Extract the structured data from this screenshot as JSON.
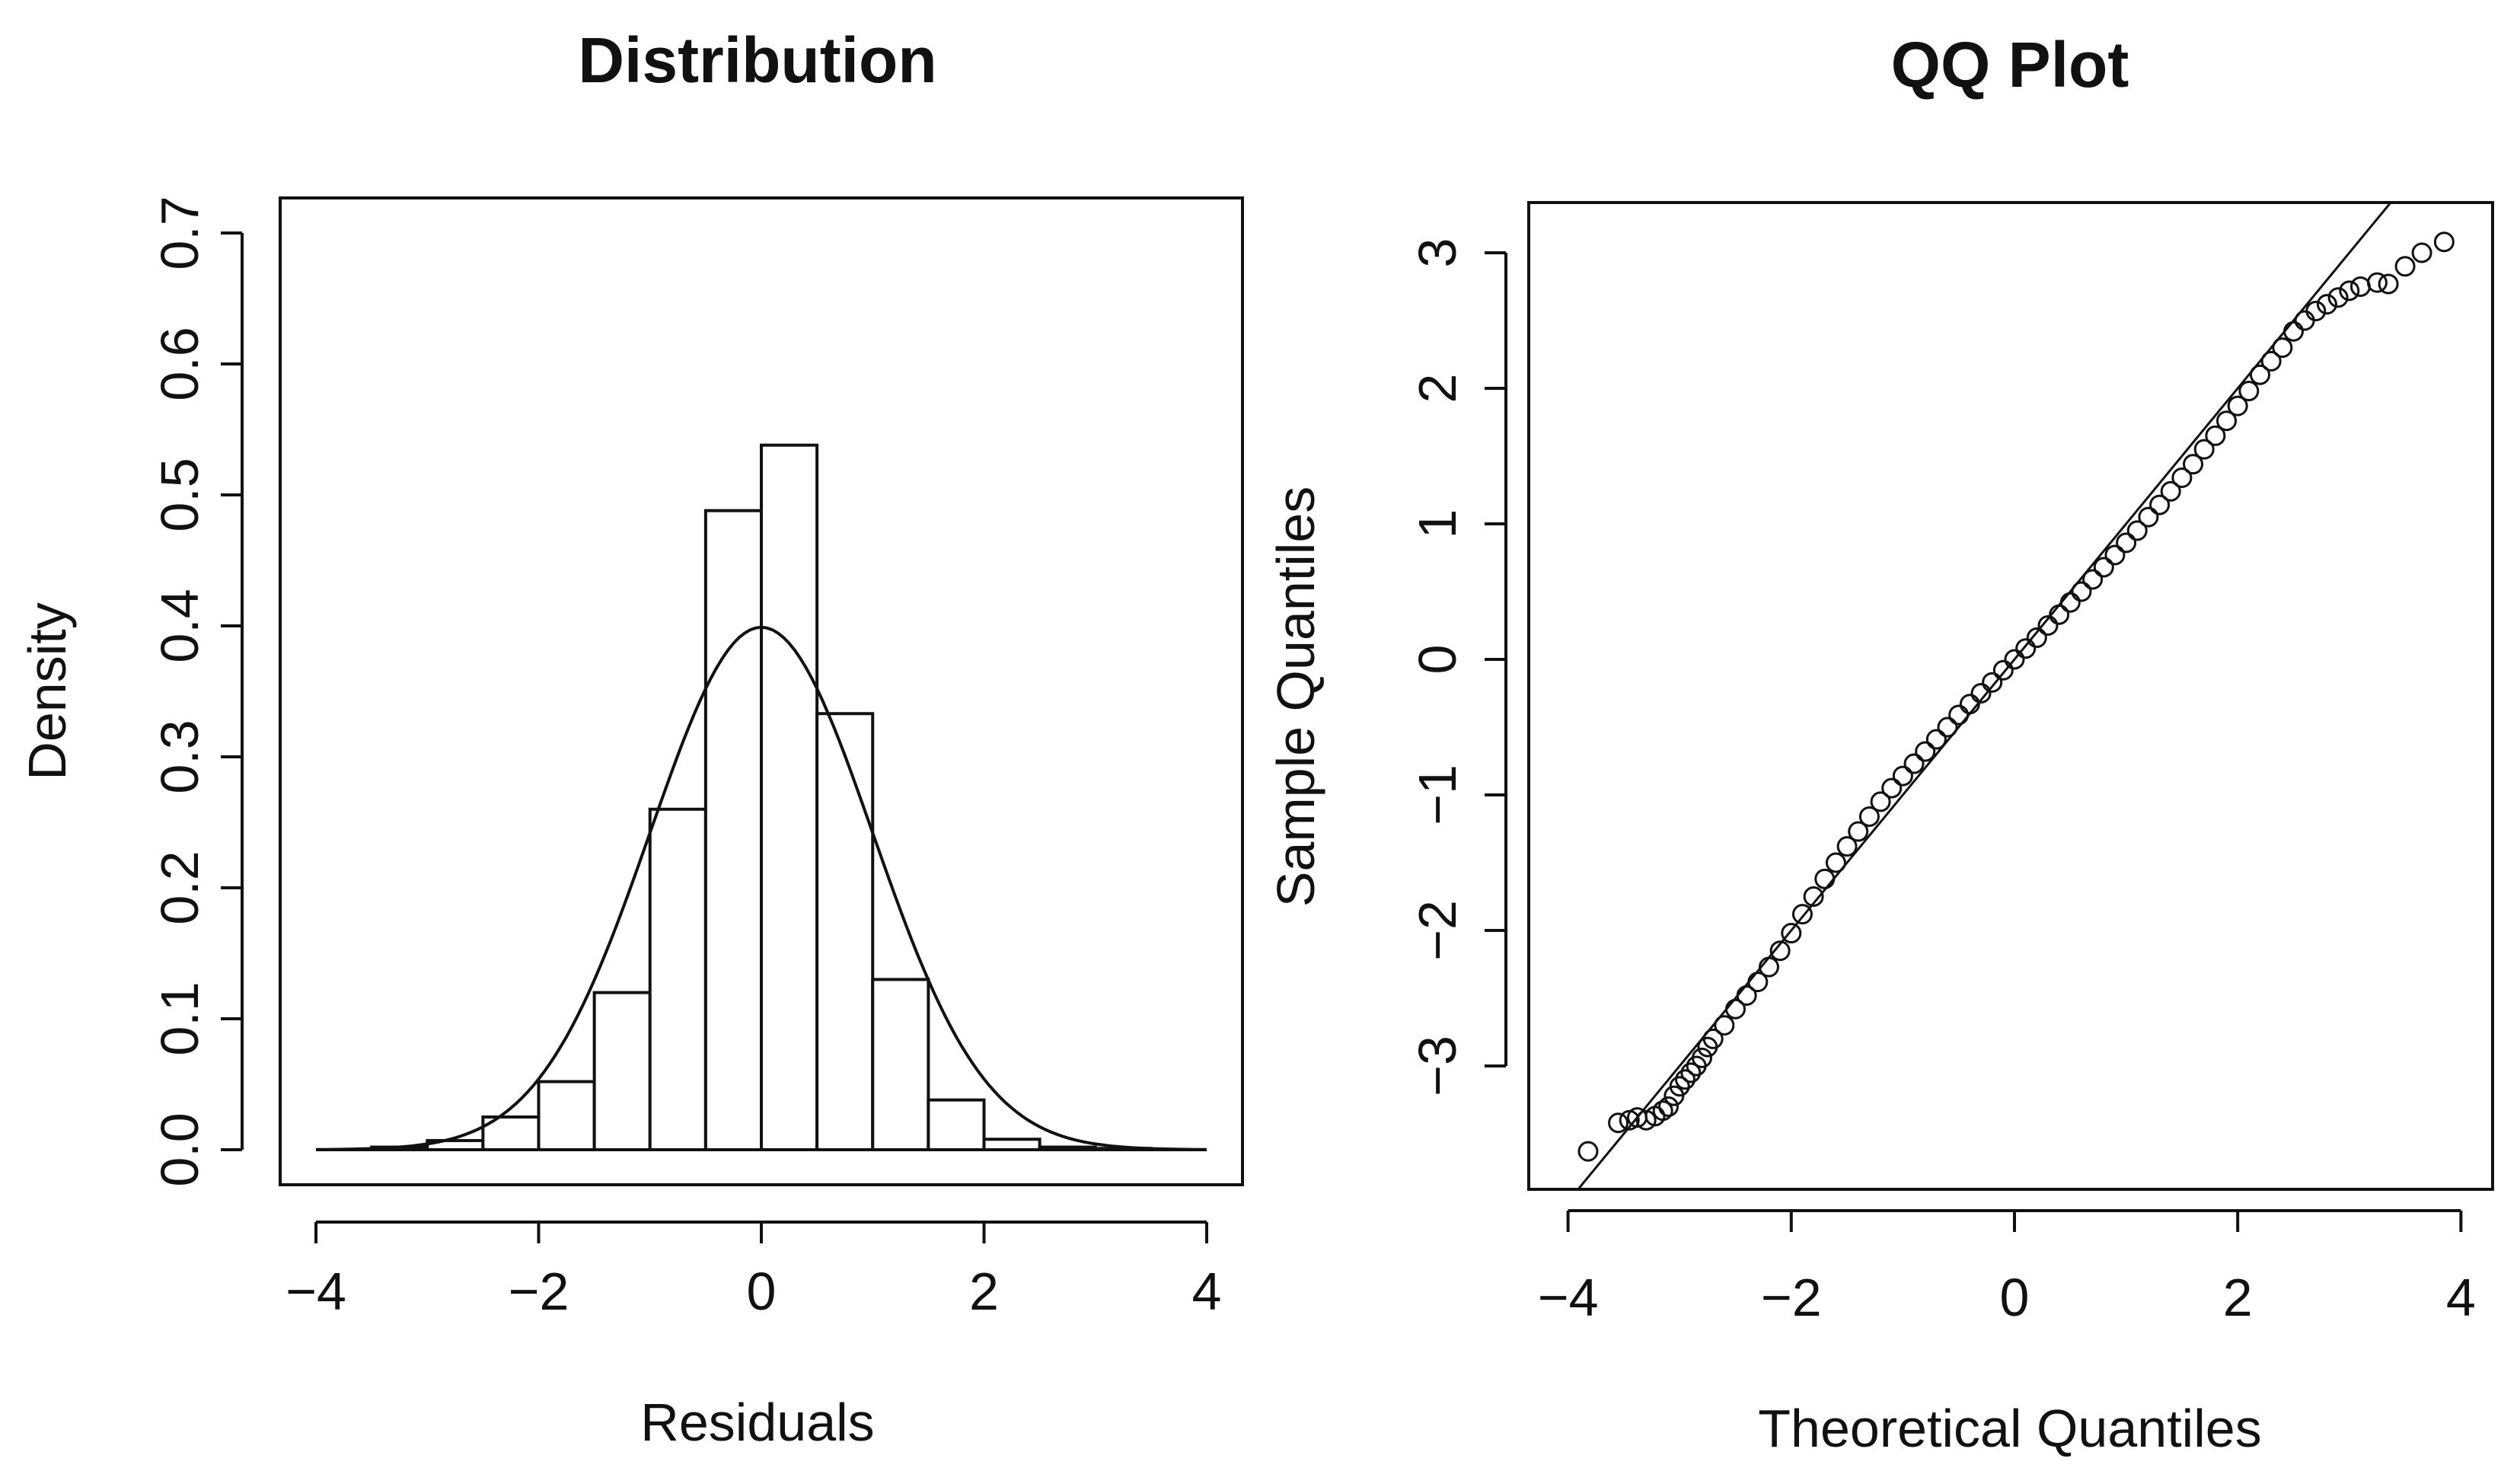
{
  "colors": {
    "ink": "#111111",
    "background": "#ffffff",
    "bar_fill": "#ffffff"
  },
  "chart_data": [
    {
      "type": "bar",
      "subtype": "histogram-with-density-curve",
      "title": "Distribution",
      "xlabel": "Residuals",
      "ylabel": "Density",
      "xlim": [
        -4,
        4
      ],
      "ylim": [
        0,
        0.7
      ],
      "x_ticks": [
        -4,
        -2,
        0,
        2,
        4
      ],
      "x_tick_labels": [
        "−4",
        "−2",
        "0",
        "2",
        "4"
      ],
      "y_ticks": [
        0,
        0.1,
        0.2,
        0.3,
        0.4,
        0.5,
        0.6,
        0.7
      ],
      "y_tick_labels": [
        "0.0",
        "0.1",
        "0.2",
        "0.3",
        "0.4",
        "0.5",
        "0.6",
        "0.7"
      ],
      "bin_width": 0.5,
      "bins": [
        {
          "start": -3.5,
          "end": -3.0,
          "density": 0.002
        },
        {
          "start": -3.0,
          "end": -2.5,
          "density": 0.007
        },
        {
          "start": -2.5,
          "end": -2.0,
          "density": 0.025
        },
        {
          "start": -2.0,
          "end": -1.5,
          "density": 0.052
        },
        {
          "start": -1.5,
          "end": -1.0,
          "density": 0.12
        },
        {
          "start": -1.0,
          "end": -0.5,
          "density": 0.26
        },
        {
          "start": -0.5,
          "end": 0.0,
          "density": 0.488
        },
        {
          "start": 0.0,
          "end": 0.5,
          "density": 0.538
        },
        {
          "start": 0.5,
          "end": 1.0,
          "density": 0.333
        },
        {
          "start": 1.0,
          "end": 1.5,
          "density": 0.13
        },
        {
          "start": 1.5,
          "end": 2.0,
          "density": 0.038
        },
        {
          "start": 2.0,
          "end": 2.5,
          "density": 0.008
        },
        {
          "start": 2.5,
          "end": 3.0,
          "density": 0.002
        },
        {
          "start": 3.0,
          "end": 3.5,
          "density": 0.001
        }
      ],
      "density_curve": {
        "distribution": "normal",
        "mean": 0,
        "sd": 1,
        "x_range": [
          -4,
          4
        ]
      },
      "baseline": {
        "y": 0,
        "x_range": [
          -4,
          4
        ]
      }
    },
    {
      "type": "scatter",
      "subtype": "qq-plot",
      "title": "QQ Plot",
      "xlabel": "Theoretical Quantiles",
      "ylabel": "Sample Quantiles",
      "xlim": [
        -4.2,
        4.2
      ],
      "ylim": [
        -3.9,
        3.3
      ],
      "x_ticks": [
        -4,
        -2,
        0,
        2,
        4
      ],
      "x_tick_labels": [
        "−4",
        "−2",
        "0",
        "2",
        "4"
      ],
      "y_ticks": [
        -3,
        -2,
        -1,
        0,
        1,
        2,
        3
      ],
      "y_tick_labels": [
        "−3",
        "−2",
        "−1",
        "0",
        "1",
        "2",
        "3"
      ],
      "reference_line": {
        "slope": 1.0,
        "intercept": 0.0
      },
      "points": [
        [
          -3.82,
          -3.63
        ],
        [
          -3.55,
          -3.42
        ],
        [
          -3.45,
          -3.4
        ],
        [
          -3.38,
          -3.38
        ],
        [
          -3.3,
          -3.4
        ],
        [
          -3.22,
          -3.37
        ],
        [
          -3.15,
          -3.33
        ],
        [
          -3.1,
          -3.3
        ],
        [
          -3.05,
          -3.22
        ],
        [
          -3.0,
          -3.15
        ],
        [
          -2.95,
          -3.1
        ],
        [
          -2.9,
          -3.05
        ],
        [
          -2.85,
          -3.0
        ],
        [
          -2.8,
          -2.94
        ],
        [
          -2.75,
          -2.86
        ],
        [
          -2.7,
          -2.8
        ],
        [
          -2.6,
          -2.7
        ],
        [
          -2.5,
          -2.58
        ],
        [
          -2.4,
          -2.48
        ],
        [
          -2.3,
          -2.38
        ],
        [
          -2.2,
          -2.27
        ],
        [
          -2.1,
          -2.15
        ],
        [
          -2.0,
          -2.02
        ],
        [
          -1.9,
          -1.88
        ],
        [
          -1.8,
          -1.75
        ],
        [
          -1.7,
          -1.62
        ],
        [
          -1.6,
          -1.5
        ],
        [
          -1.5,
          -1.38
        ],
        [
          -1.4,
          -1.27
        ],
        [
          -1.3,
          -1.16
        ],
        [
          -1.2,
          -1.05
        ],
        [
          -1.1,
          -0.95
        ],
        [
          -1.0,
          -0.86
        ],
        [
          -0.9,
          -0.77
        ],
        [
          -0.8,
          -0.68
        ],
        [
          -0.7,
          -0.59
        ],
        [
          -0.6,
          -0.5
        ],
        [
          -0.5,
          -0.41
        ],
        [
          -0.4,
          -0.33
        ],
        [
          -0.3,
          -0.25
        ],
        [
          -0.2,
          -0.17
        ],
        [
          -0.1,
          -0.08
        ],
        [
          0.0,
          0.0
        ],
        [
          0.1,
          0.08
        ],
        [
          0.2,
          0.16
        ],
        [
          0.3,
          0.25
        ],
        [
          0.4,
          0.33
        ],
        [
          0.5,
          0.42
        ],
        [
          0.6,
          0.5
        ],
        [
          0.7,
          0.59
        ],
        [
          0.8,
          0.68
        ],
        [
          0.9,
          0.77
        ],
        [
          1.0,
          0.86
        ],
        [
          1.1,
          0.95
        ],
        [
          1.2,
          1.05
        ],
        [
          1.3,
          1.14
        ],
        [
          1.4,
          1.24
        ],
        [
          1.5,
          1.34
        ],
        [
          1.6,
          1.44
        ],
        [
          1.7,
          1.55
        ],
        [
          1.8,
          1.65
        ],
        [
          1.9,
          1.76
        ],
        [
          2.0,
          1.87
        ],
        [
          2.1,
          1.98
        ],
        [
          2.2,
          2.1
        ],
        [
          2.3,
          2.2
        ],
        [
          2.4,
          2.3
        ],
        [
          2.5,
          2.42
        ],
        [
          2.6,
          2.5
        ],
        [
          2.7,
          2.57
        ],
        [
          2.8,
          2.62
        ],
        [
          2.9,
          2.67
        ],
        [
          3.0,
          2.72
        ],
        [
          3.1,
          2.75
        ],
        [
          3.25,
          2.78
        ],
        [
          3.35,
          2.77
        ],
        [
          3.5,
          2.9
        ],
        [
          3.65,
          3.0
        ],
        [
          3.85,
          3.08
        ]
      ]
    }
  ]
}
